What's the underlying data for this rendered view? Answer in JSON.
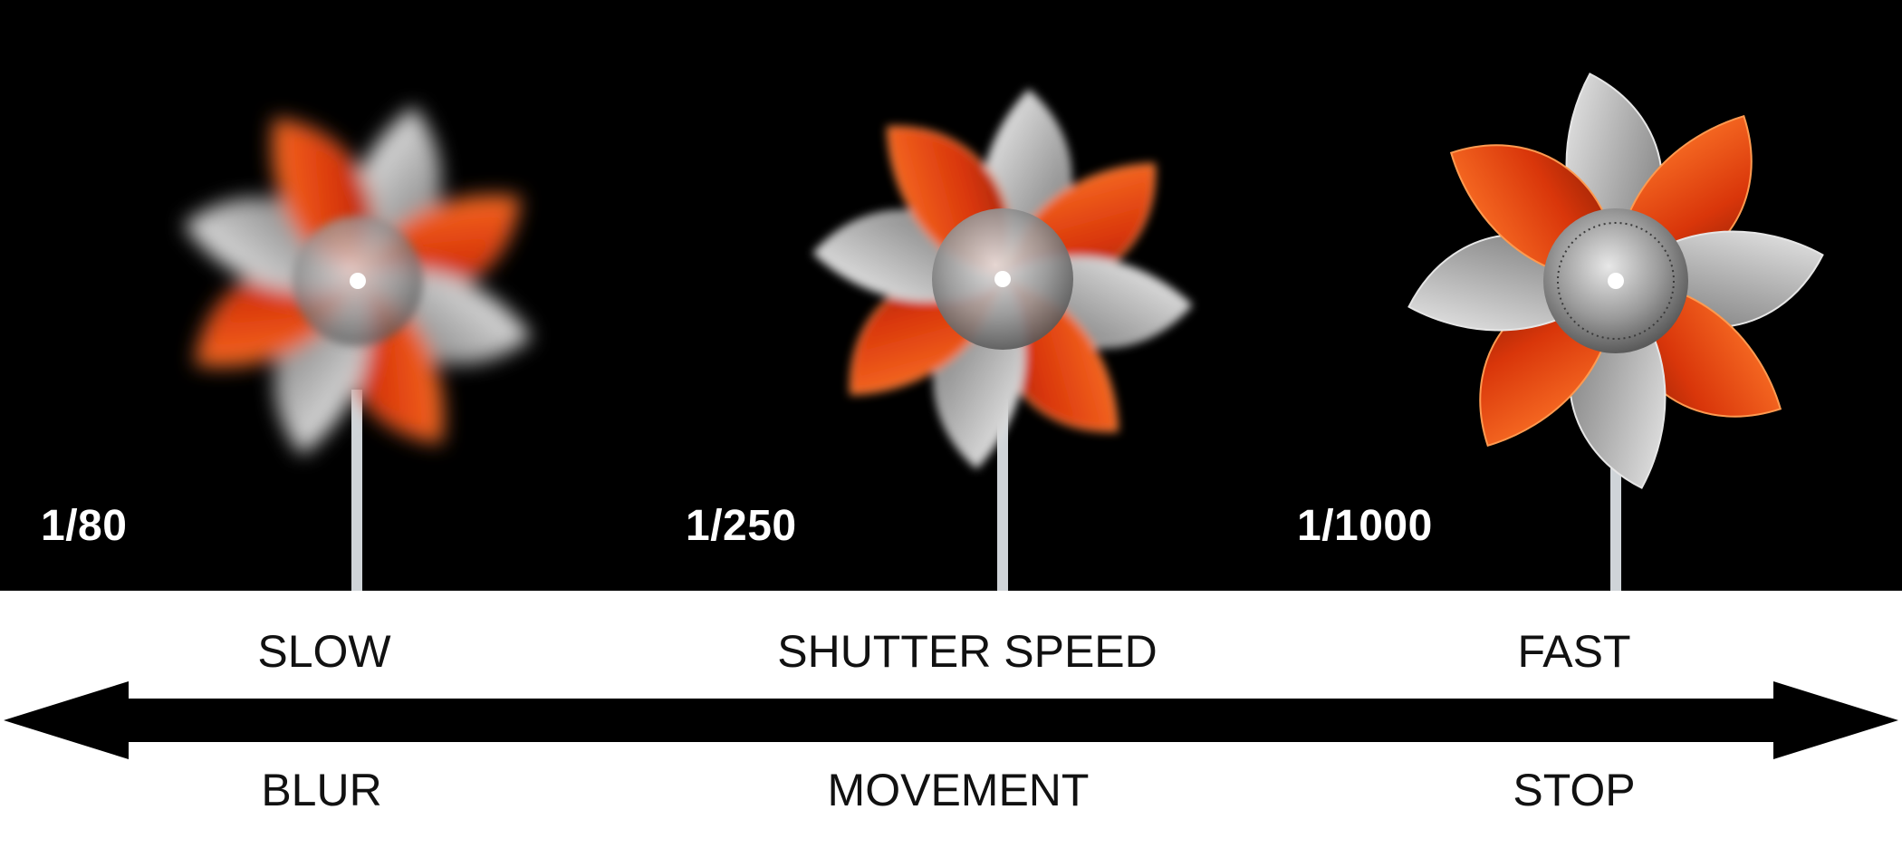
{
  "photos": [
    {
      "shutter_label": "1/80",
      "motion": "heavy blur"
    },
    {
      "shutter_label": "1/250",
      "motion": "partial blur"
    },
    {
      "shutter_label": "1/1000",
      "motion": "frozen"
    }
  ],
  "scale": {
    "top_labels": {
      "left": "SLOW",
      "center": "SHUTTER SPEED",
      "right": "FAST"
    },
    "bottom_labels": {
      "left": "BLUR",
      "center": "MOVEMENT",
      "right": "STOP"
    }
  },
  "colors": {
    "background": "#000000",
    "blade_orange": "#e8480f",
    "blade_silver": "#c9c9c9",
    "text_dark": "#111111"
  }
}
